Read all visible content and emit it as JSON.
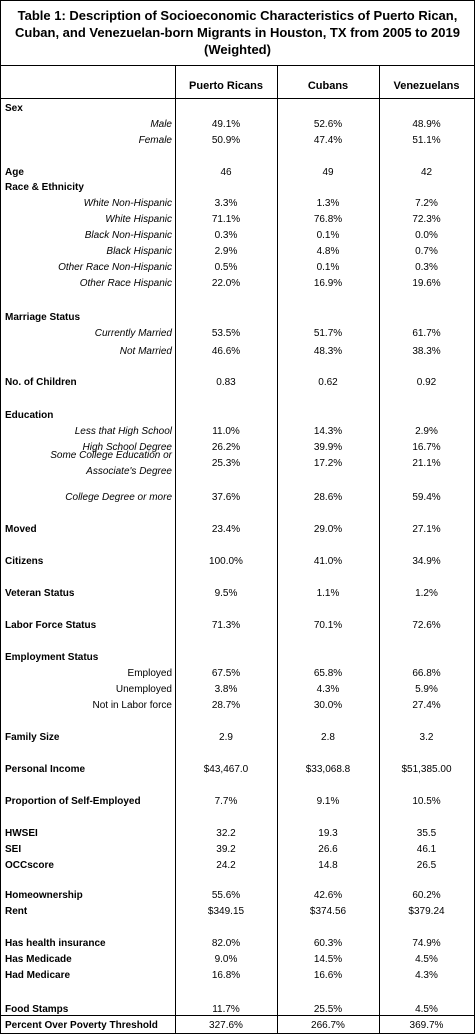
{
  "title": {
    "line1": "Table 1: Description of Socioeconomic Characteristics of Puerto Rican,",
    "line2": "Cuban, and Venezuelan-born Migrants in Houston, TX from 2005 to 2019",
    "line3": "(Weighted)"
  },
  "columns": [
    "Puerto Ricans",
    "Cubans",
    "Venezuelans"
  ],
  "rows": [
    {
      "type": "head",
      "label": "Sex",
      "values": [
        "",
        "",
        ""
      ]
    },
    {
      "type": "italic",
      "label": "Male",
      "values": [
        "49.1%",
        "52.6%",
        "48.9%"
      ]
    },
    {
      "type": "italic",
      "label": "Female",
      "values": [
        "50.9%",
        "47.4%",
        "51.1%"
      ]
    },
    {
      "type": "head",
      "label": "Age",
      "values": [
        "46",
        "49",
        "42"
      ]
    },
    {
      "type": "head",
      "label": "Race & Ethnicity",
      "values": [
        "",
        "",
        ""
      ]
    },
    {
      "type": "italic",
      "label": "White Non-Hispanic",
      "values": [
        "3.3%",
        "1.3%",
        "7.2%"
      ]
    },
    {
      "type": "italic",
      "label": "White Hispanic",
      "values": [
        "71.1%",
        "76.8%",
        "72.3%"
      ]
    },
    {
      "type": "italic",
      "label": "Black Non-Hispanic",
      "values": [
        "0.3%",
        "0.1%",
        "0.0%"
      ]
    },
    {
      "type": "italic",
      "label": "Black Hispanic",
      "values": [
        "2.9%",
        "4.8%",
        "0.7%"
      ]
    },
    {
      "type": "italic",
      "label": "Other Race Non-Hispanic",
      "values": [
        "0.5%",
        "0.1%",
        "0.3%"
      ]
    },
    {
      "type": "italic",
      "label": "Other Race Hispanic",
      "values": [
        "22.0%",
        "16.9%",
        "19.6%"
      ]
    },
    {
      "type": "head",
      "label": "Marriage Status",
      "values": [
        "",
        "",
        ""
      ]
    },
    {
      "type": "italic",
      "label": "Currently Married",
      "values": [
        "53.5%",
        "51.7%",
        "61.7%"
      ]
    },
    {
      "type": "italic",
      "label": "Not Married",
      "values": [
        "46.6%",
        "48.3%",
        "38.3%"
      ]
    },
    {
      "type": "head",
      "label": "No. of Children",
      "values": [
        "0.83",
        "0.62",
        "0.92"
      ]
    },
    {
      "type": "head",
      "label": "Education",
      "values": [
        "",
        "",
        ""
      ]
    },
    {
      "type": "italic",
      "label": "Less that High School",
      "values": [
        "11.0%",
        "14.3%",
        "2.9%"
      ]
    },
    {
      "type": "italic",
      "label": "High School Degree",
      "values": [
        "26.2%",
        "39.9%",
        "16.7%"
      ]
    },
    {
      "type": "italic2",
      "label": "Some College Education or",
      "label2": "Associate's Degree",
      "values": [
        "25.3%",
        "17.2%",
        "21.1%"
      ]
    },
    {
      "type": "italic",
      "label": "College Degree or more",
      "values": [
        "37.6%",
        "28.6%",
        "59.4%"
      ]
    },
    {
      "type": "head",
      "label": "Moved",
      "values": [
        "23.4%",
        "29.0%",
        "27.1%"
      ]
    },
    {
      "type": "head",
      "label": "Citizens",
      "values": [
        "100.0%",
        "41.0%",
        "34.9%"
      ]
    },
    {
      "type": "head",
      "label": "Veteran Status",
      "values": [
        "9.5%",
        "1.1%",
        "1.2%"
      ]
    },
    {
      "type": "head",
      "label": "Labor Force Status",
      "values": [
        "71.3%",
        "70.1%",
        "72.6%"
      ]
    },
    {
      "type": "head",
      "label": "Employment Status",
      "values": [
        "",
        "",
        ""
      ]
    },
    {
      "type": "plain",
      "label": "Employed",
      "values": [
        "67.5%",
        "65.8%",
        "66.8%"
      ]
    },
    {
      "type": "plain",
      "label": "Unemployed",
      "values": [
        "3.8%",
        "4.3%",
        "5.9%"
      ]
    },
    {
      "type": "plain",
      "label": "Not in Labor force",
      "values": [
        "28.7%",
        "30.0%",
        "27.4%"
      ]
    },
    {
      "type": "head",
      "label": "Family Size",
      "values": [
        "2.9",
        "2.8",
        "3.2"
      ]
    },
    {
      "type": "head",
      "label": "Personal Income",
      "values": [
        "$43,467.0",
        "$33,068.8",
        "$51,385.00"
      ]
    },
    {
      "type": "head",
      "label": "Proportion of Self-Employed",
      "values": [
        "7.7%",
        "9.1%",
        "10.5%"
      ]
    },
    {
      "type": "head",
      "label": "HWSEI",
      "values": [
        "32.2",
        "19.3",
        "35.5"
      ]
    },
    {
      "type": "head",
      "label": "SEI",
      "values": [
        "39.2",
        "26.6",
        "46.1"
      ]
    },
    {
      "type": "head",
      "label": "OCCscore",
      "values": [
        "24.2",
        "14.8",
        "26.5"
      ]
    },
    {
      "type": "head",
      "label": "Homeownership",
      "values": [
        "55.6%",
        "42.6%",
        "60.2%"
      ]
    },
    {
      "type": "head",
      "label": "Rent",
      "values": [
        "$349.15",
        "$374.56",
        "$379.24"
      ]
    },
    {
      "type": "head",
      "label": "Has health insurance",
      "values": [
        "82.0%",
        "60.3%",
        "74.9%"
      ]
    },
    {
      "type": "head",
      "label": "Has Medicade",
      "values": [
        "9.0%",
        "14.5%",
        "4.5%"
      ]
    },
    {
      "type": "head",
      "label": "Had Medicare",
      "values": [
        "16.8%",
        "16.6%",
        "4.3%"
      ]
    },
    {
      "type": "head",
      "label": "Food Stamps",
      "values": [
        "11.7%",
        "25.5%",
        "4.5%"
      ]
    },
    {
      "type": "head",
      "label": "Percent Over Poverty Threshold",
      "values": [
        "327.6%",
        "266.7%",
        "369.7%"
      ]
    }
  ]
}
